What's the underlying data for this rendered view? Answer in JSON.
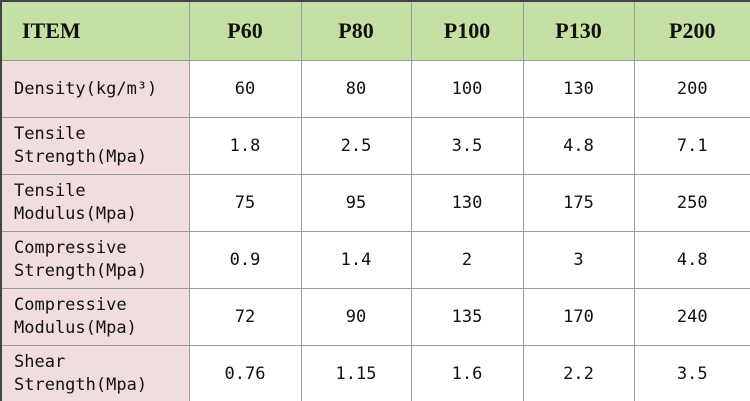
{
  "table": {
    "header": [
      "ITEM",
      "P60",
      "P80",
      "P100",
      "P130",
      "P200"
    ],
    "rows": [
      [
        "Density(kg/m³)",
        60,
        80,
        100,
        130,
        200
      ],
      [
        "Tensile Strength(Mpa)",
        1.8,
        2.5,
        3.5,
        4.8,
        7.1
      ],
      [
        "Tensile Modulus(Mpa)",
        75,
        95,
        130,
        175,
        250
      ],
      [
        "Compressive Strength(Mpa)",
        0.9,
        1.4,
        2,
        3,
        4.8
      ],
      [
        "Compressive Modulus(Mpa)",
        72,
        90,
        135,
        170,
        240
      ],
      [
        "Shear Strength(Mpa)",
        0.76,
        1.15,
        1.6,
        2.2,
        3.5
      ]
    ]
  }
}
